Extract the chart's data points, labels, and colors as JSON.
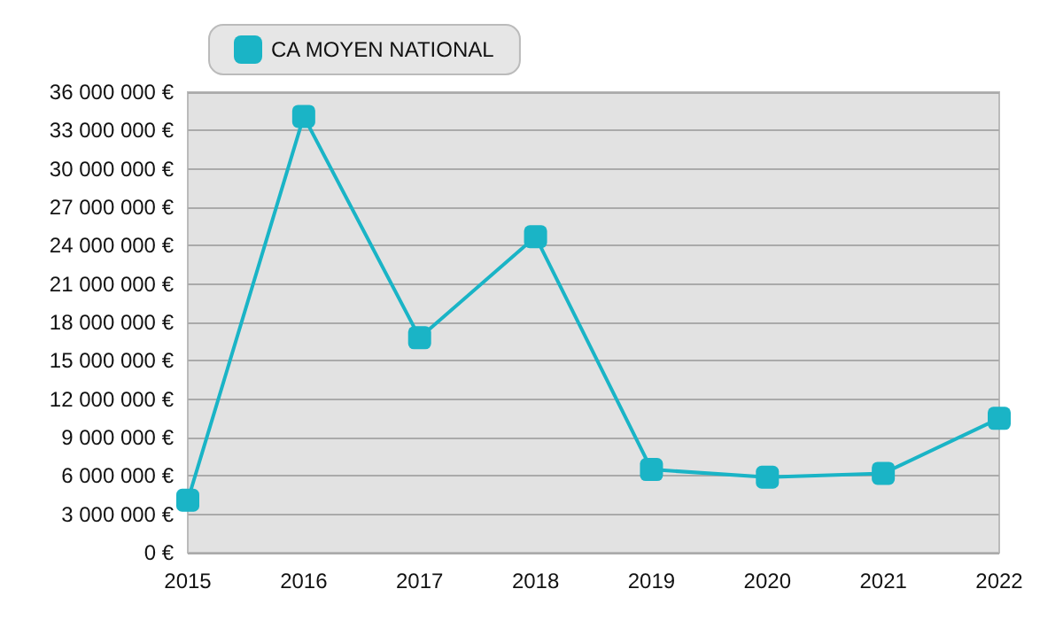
{
  "chart_data": {
    "type": "line",
    "categories": [
      "2015",
      "2016",
      "2017",
      "2018",
      "2019",
      "2020",
      "2021",
      "2022"
    ],
    "series": [
      {
        "name": "CA MOYEN NATIONAL",
        "color": "#1ab4c6",
        "values": [
          4100000,
          34100000,
          16800000,
          24700000,
          6500000,
          5900000,
          6200000,
          10500000
        ]
      }
    ],
    "ylim": [
      0,
      36000000
    ],
    "yticks": [
      {
        "value": 0,
        "label": "0 €"
      },
      {
        "value": 3000000,
        "label": "3 000 000 €"
      },
      {
        "value": 6000000,
        "label": "6 000 000 €"
      },
      {
        "value": 9000000,
        "label": "9 000 000 €"
      },
      {
        "value": 12000000,
        "label": "12 000 000 €"
      },
      {
        "value": 15000000,
        "label": "15 000 000 €"
      },
      {
        "value": 18000000,
        "label": "18 000 000 €"
      },
      {
        "value": 21000000,
        "label": "21 000 000 €"
      },
      {
        "value": 24000000,
        "label": "24 000 000 €"
      },
      {
        "value": 27000000,
        "label": "27 000 000 €"
      },
      {
        "value": 30000000,
        "label": "30 000 000 €"
      },
      {
        "value": 33000000,
        "label": "33 000 000 €"
      },
      {
        "value": 36000000,
        "label": "36 000 000 €"
      }
    ],
    "grid": "y",
    "legend": "top left",
    "marker": "square",
    "line_style": "solid"
  }
}
